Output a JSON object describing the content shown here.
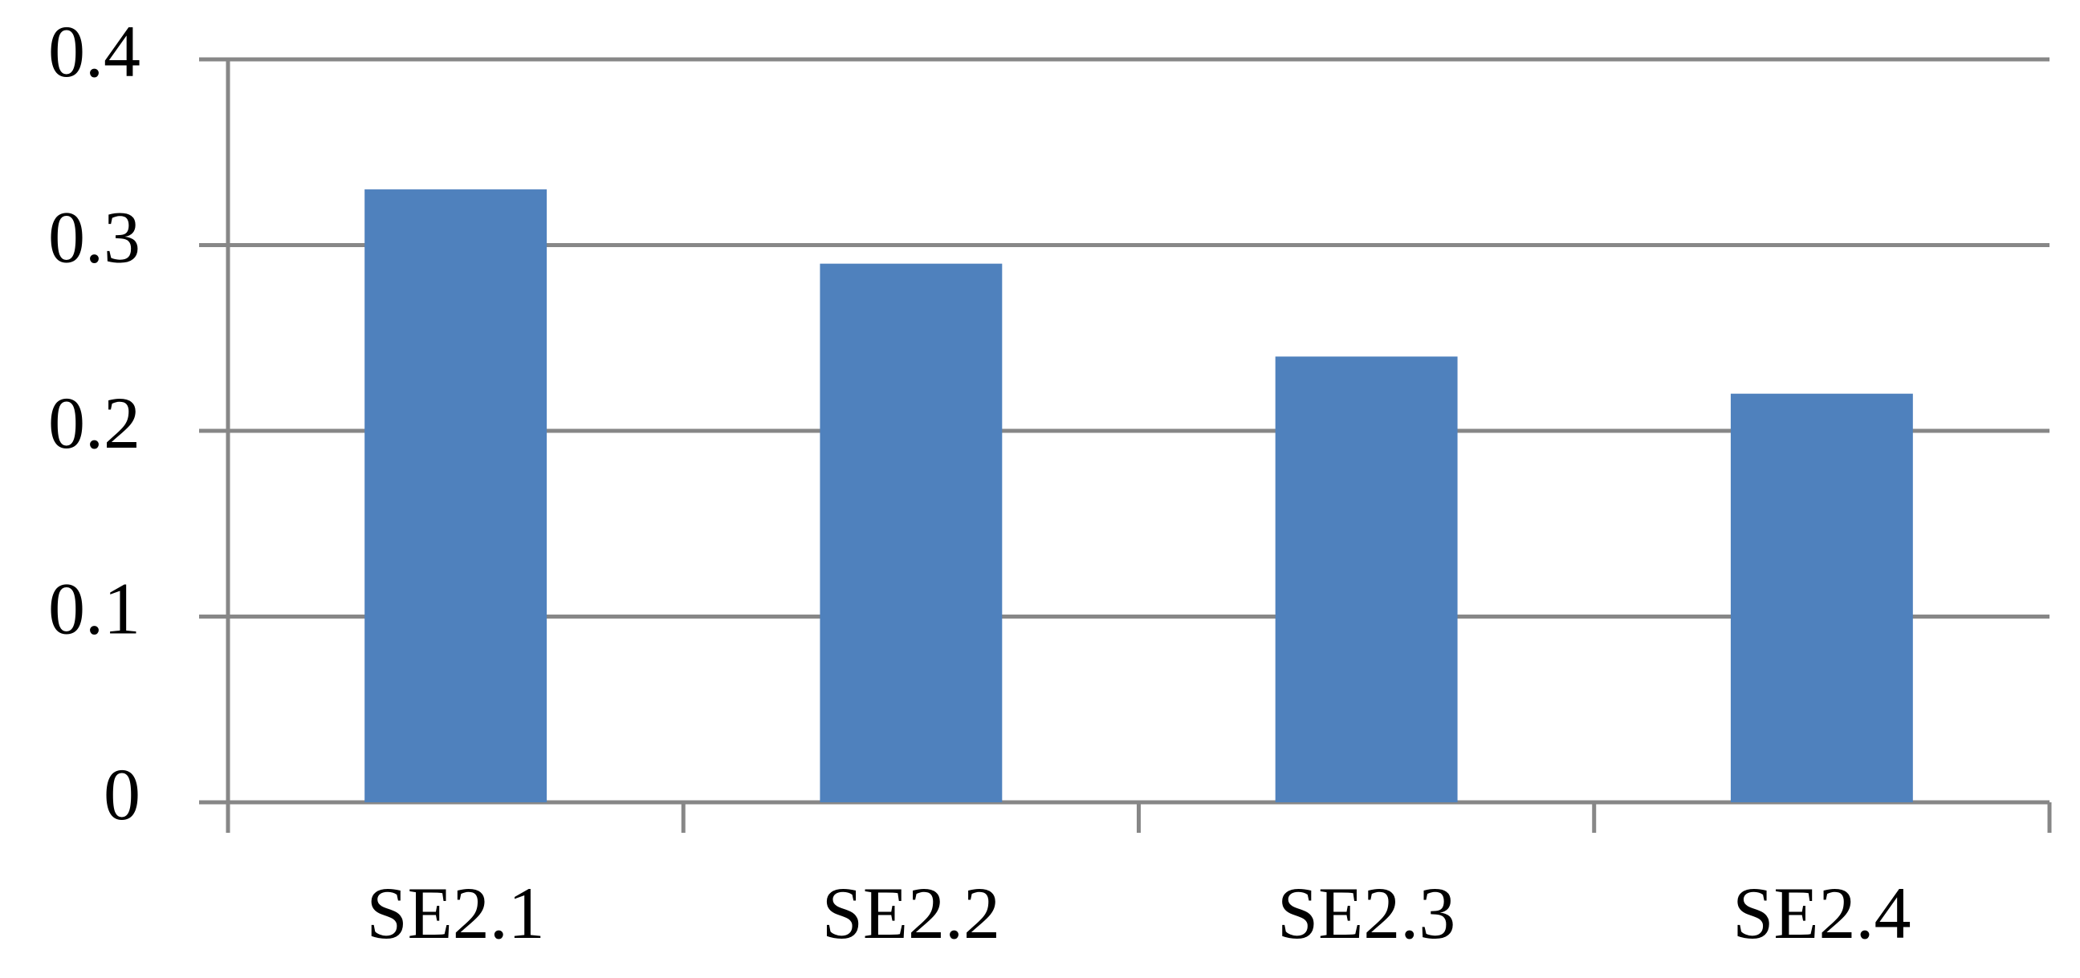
{
  "chart_data": {
    "type": "bar",
    "categories": [
      "SE2.1",
      "SE2.2",
      "SE2.3",
      "SE2.4"
    ],
    "values": [
      0.33,
      0.29,
      0.24,
      0.22
    ],
    "color": "#4f81bd",
    "ylim": [
      0,
      0.4
    ],
    "yticks": [
      0,
      0.1,
      0.2,
      0.3,
      0.4
    ],
    "grid": true
  }
}
